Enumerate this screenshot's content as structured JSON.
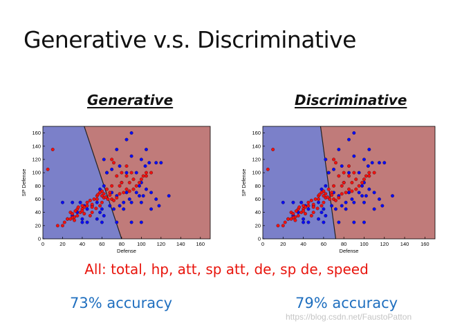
{
  "slide": {
    "title": "Generative v.s. Discriminative",
    "features_text": "All: total, hp, att, sp att, de, sp de, speed",
    "watermark": "https://blog.csdn.net/FaustoPatton"
  },
  "colors": {
    "region_blue": "#7b80c9",
    "region_red": "#c07b7a",
    "point_blue": "#0a0af5",
    "point_red": "#f01010",
    "accuracy_text": "#1f6fbf",
    "features_text": "#e8140c"
  },
  "chart_data": [
    {
      "type": "scatter",
      "heading": "Generative",
      "accuracy_label": "73% accuracy",
      "xlabel": "Defense",
      "ylabel": "SP Defense",
      "xlim": [
        0,
        170
      ],
      "ylim": [
        0,
        170
      ],
      "xticks": [
        0,
        20,
        40,
        60,
        80,
        100,
        120,
        140,
        160
      ],
      "yticks": [
        0,
        20,
        40,
        60,
        80,
        100,
        120,
        140,
        160
      ],
      "grid": false,
      "boundary": [
        [
          42,
          170
        ],
        [
          80,
          0
        ]
      ],
      "series": [
        {
          "color": "#0a0af5",
          "points": [
            [
              90,
              160
            ],
            [
              85,
              150
            ],
            [
              75,
              135
            ],
            [
              90,
              125
            ],
            [
              105,
              135
            ],
            [
              100,
              120
            ],
            [
              115,
              115
            ],
            [
              120,
              115
            ],
            [
              62,
              120
            ],
            [
              70,
              105
            ],
            [
              78,
              110
            ],
            [
              85,
              100
            ],
            [
              95,
              100
            ],
            [
              104,
              110
            ],
            [
              108,
              115
            ],
            [
              65,
              100
            ],
            [
              58,
              75
            ],
            [
              62,
              80
            ],
            [
              70,
              70
            ],
            [
              75,
              65
            ],
            [
              85,
              70
            ],
            [
              95,
              70
            ],
            [
              98,
              80
            ],
            [
              100,
              85
            ],
            [
              105,
              75
            ],
            [
              102,
              65
            ],
            [
              110,
              70
            ],
            [
              115,
              60
            ],
            [
              128,
              65
            ],
            [
              88,
              60
            ],
            [
              82,
              55
            ],
            [
              90,
              55
            ],
            [
              78,
              50
            ],
            [
              72,
              45
            ],
            [
              60,
              45
            ],
            [
              58,
              40
            ],
            [
              62,
              35
            ],
            [
              55,
              30
            ],
            [
              50,
              50
            ],
            [
              45,
              45
            ],
            [
              42,
              50
            ],
            [
              38,
              55
            ],
            [
              35,
              40
            ],
            [
              30,
              35
            ],
            [
              25,
              30
            ],
            [
              20,
              55
            ],
            [
              30,
              55
            ],
            [
              40,
              30
            ],
            [
              45,
              25
            ],
            [
              60,
              25
            ],
            [
              75,
              25
            ],
            [
              90,
              25
            ],
            [
              100,
              25
            ],
            [
              110,
              45
            ],
            [
              118,
              50
            ],
            [
              82,
              45
            ],
            [
              55,
              55
            ],
            [
              68,
              50
            ],
            [
              65,
              100
            ],
            [
              100,
              55
            ],
            [
              98,
              65
            ],
            [
              80,
              85
            ],
            [
              30,
              35
            ],
            [
              40,
              25
            ]
          ]
        },
        {
          "color": "#f01010",
          "points": [
            [
              10,
              135
            ],
            [
              5,
              105
            ],
            [
              85,
              110
            ],
            [
              70,
              120
            ],
            [
              72,
              115
            ],
            [
              80,
              100
            ],
            [
              75,
              95
            ],
            [
              85,
              95
            ],
            [
              90,
              100
            ],
            [
              92,
              90
            ],
            [
              98,
              85
            ],
            [
              102,
              95
            ],
            [
              105,
              95
            ],
            [
              110,
              100
            ],
            [
              88,
              85
            ],
            [
              80,
              85
            ],
            [
              78,
              80
            ],
            [
              70,
              80
            ],
            [
              65,
              75
            ],
            [
              68,
              70
            ],
            [
              60,
              72
            ],
            [
              58,
              70
            ],
            [
              62,
              68
            ],
            [
              55,
              65
            ],
            [
              52,
              60
            ],
            [
              48,
              58
            ],
            [
              50,
              52
            ],
            [
              45,
              50
            ],
            [
              42,
              48
            ],
            [
              40,
              45
            ],
            [
              38,
              40
            ],
            [
              35,
              35
            ],
            [
              32,
              33
            ],
            [
              30,
              32
            ],
            [
              25,
              30
            ],
            [
              22,
              25
            ],
            [
              20,
              20
            ],
            [
              15,
              20
            ],
            [
              28,
              40
            ],
            [
              35,
              45
            ],
            [
              40,
              50
            ],
            [
              45,
              55
            ],
            [
              55,
              60
            ],
            [
              60,
              55
            ],
            [
              62,
              62
            ],
            [
              66,
              60
            ],
            [
              70,
              60
            ],
            [
              72,
              58
            ],
            [
              75,
              62
            ],
            [
              78,
              68
            ],
            [
              82,
              70
            ],
            [
              85,
              75
            ],
            [
              88,
              72
            ],
            [
              92,
              75
            ],
            [
              95,
              80
            ],
            [
              100,
              90
            ],
            [
              105,
              100
            ],
            [
              60,
              65
            ],
            [
              56,
              67
            ],
            [
              64,
              63
            ],
            [
              68,
              66
            ],
            [
              50,
              40
            ],
            [
              48,
              35
            ],
            [
              42,
              38
            ],
            [
              40,
              42
            ],
            [
              36,
              48
            ],
            [
              33,
              42
            ],
            [
              30,
              38
            ],
            [
              28,
              30
            ],
            [
              32,
              28
            ],
            [
              50,
              48
            ],
            [
              54,
              46
            ],
            [
              58,
              50
            ]
          ]
        }
      ]
    },
    {
      "type": "scatter",
      "heading": "Discriminative",
      "accuracy_label": "79% accuracy",
      "xlabel": "Defense",
      "ylabel": "SP Defense",
      "xlim": [
        0,
        170
      ],
      "ylim": [
        0,
        170
      ],
      "xticks": [
        0,
        20,
        40,
        60,
        80,
        100,
        120,
        140,
        160
      ],
      "yticks": [
        0,
        20,
        40,
        60,
        80,
        100,
        120,
        140,
        160
      ],
      "grid": false,
      "boundary": [
        [
          57,
          170
        ],
        [
          72,
          0
        ]
      ],
      "series": [
        {
          "color": "#0a0af5",
          "points": [
            [
              90,
              160
            ],
            [
              85,
              150
            ],
            [
              75,
              135
            ],
            [
              90,
              125
            ],
            [
              105,
              135
            ],
            [
              100,
              120
            ],
            [
              115,
              115
            ],
            [
              120,
              115
            ],
            [
              62,
              120
            ],
            [
              70,
              105
            ],
            [
              78,
              110
            ],
            [
              85,
              100
            ],
            [
              95,
              100
            ],
            [
              104,
              110
            ],
            [
              108,
              115
            ],
            [
              65,
              100
            ],
            [
              58,
              75
            ],
            [
              62,
              80
            ],
            [
              70,
              70
            ],
            [
              75,
              65
            ],
            [
              85,
              70
            ],
            [
              95,
              70
            ],
            [
              98,
              80
            ],
            [
              100,
              85
            ],
            [
              105,
              75
            ],
            [
              102,
              65
            ],
            [
              110,
              70
            ],
            [
              115,
              60
            ],
            [
              128,
              65
            ],
            [
              88,
              60
            ],
            [
              82,
              55
            ],
            [
              90,
              55
            ],
            [
              78,
              50
            ],
            [
              72,
              45
            ],
            [
              60,
              45
            ],
            [
              58,
              40
            ],
            [
              62,
              35
            ],
            [
              55,
              30
            ],
            [
              50,
              50
            ],
            [
              45,
              45
            ],
            [
              42,
              50
            ],
            [
              38,
              55
            ],
            [
              35,
              40
            ],
            [
              30,
              35
            ],
            [
              25,
              30
            ],
            [
              20,
              55
            ],
            [
              30,
              55
            ],
            [
              40,
              30
            ],
            [
              45,
              25
            ],
            [
              60,
              25
            ],
            [
              75,
              25
            ],
            [
              90,
              25
            ],
            [
              100,
              25
            ],
            [
              110,
              45
            ],
            [
              118,
              50
            ],
            [
              82,
              45
            ],
            [
              55,
              55
            ],
            [
              68,
              50
            ],
            [
              65,
              100
            ],
            [
              100,
              55
            ],
            [
              98,
              65
            ],
            [
              80,
              85
            ],
            [
              30,
              35
            ],
            [
              40,
              25
            ]
          ]
        },
        {
          "color": "#f01010",
          "points": [
            [
              10,
              135
            ],
            [
              5,
              105
            ],
            [
              85,
              110
            ],
            [
              70,
              120
            ],
            [
              72,
              115
            ],
            [
              80,
              100
            ],
            [
              75,
              95
            ],
            [
              85,
              95
            ],
            [
              90,
              100
            ],
            [
              92,
              90
            ],
            [
              98,
              85
            ],
            [
              102,
              95
            ],
            [
              105,
              95
            ],
            [
              110,
              100
            ],
            [
              88,
              85
            ],
            [
              80,
              85
            ],
            [
              78,
              80
            ],
            [
              70,
              80
            ],
            [
              65,
              75
            ],
            [
              68,
              70
            ],
            [
              60,
              72
            ],
            [
              58,
              70
            ],
            [
              62,
              68
            ],
            [
              55,
              65
            ],
            [
              52,
              60
            ],
            [
              48,
              58
            ],
            [
              50,
              52
            ],
            [
              45,
              50
            ],
            [
              42,
              48
            ],
            [
              40,
              45
            ],
            [
              38,
              40
            ],
            [
              35,
              35
            ],
            [
              32,
              33
            ],
            [
              30,
              32
            ],
            [
              25,
              30
            ],
            [
              22,
              25
            ],
            [
              20,
              20
            ],
            [
              15,
              20
            ],
            [
              28,
              40
            ],
            [
              35,
              45
            ],
            [
              40,
              50
            ],
            [
              45,
              55
            ],
            [
              55,
              60
            ],
            [
              60,
              55
            ],
            [
              62,
              62
            ],
            [
              66,
              60
            ],
            [
              70,
              60
            ],
            [
              72,
              58
            ],
            [
              75,
              62
            ],
            [
              78,
              68
            ],
            [
              82,
              70
            ],
            [
              85,
              75
            ],
            [
              88,
              72
            ],
            [
              92,
              75
            ],
            [
              95,
              80
            ],
            [
              100,
              90
            ],
            [
              105,
              100
            ],
            [
              60,
              65
            ],
            [
              56,
              67
            ],
            [
              64,
              63
            ],
            [
              68,
              66
            ],
            [
              50,
              40
            ],
            [
              48,
              35
            ],
            [
              42,
              38
            ],
            [
              40,
              42
            ],
            [
              36,
              48
            ],
            [
              33,
              42
            ],
            [
              30,
              38
            ],
            [
              28,
              30
            ],
            [
              32,
              28
            ],
            [
              50,
              48
            ],
            [
              54,
              46
            ],
            [
              58,
              50
            ]
          ]
        }
      ]
    }
  ]
}
